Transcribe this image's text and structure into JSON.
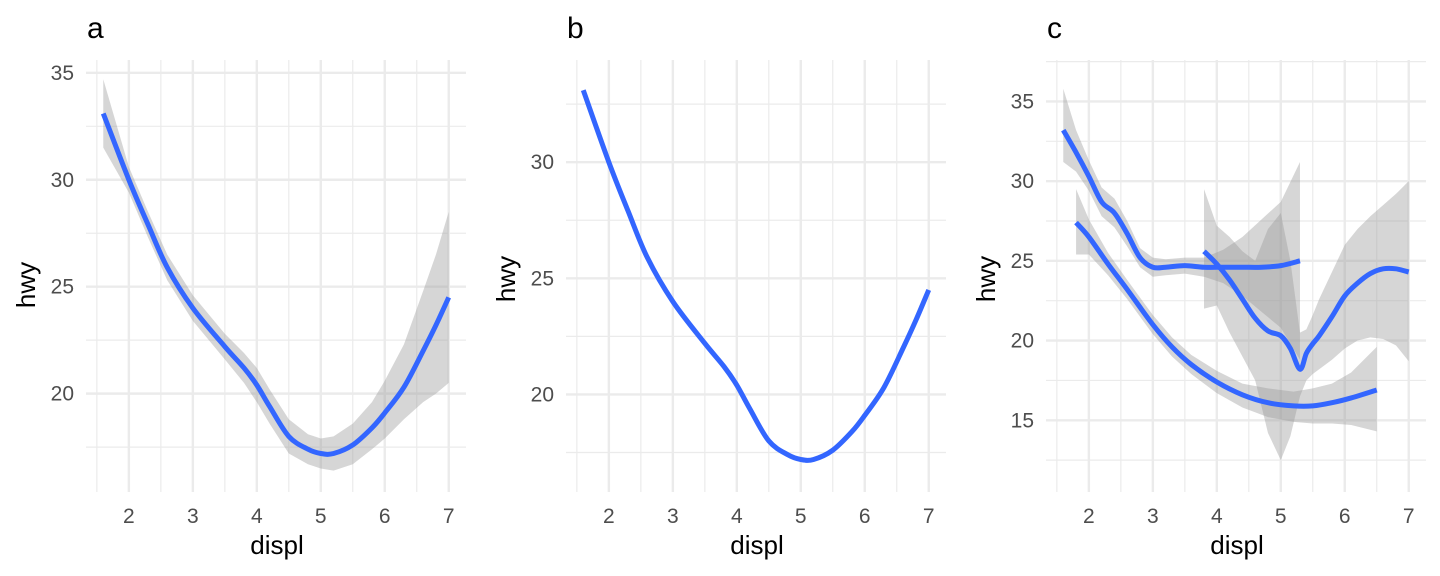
{
  "chart_data": [
    {
      "type": "line",
      "title": "a",
      "xlabel": "displ",
      "ylabel": "hwy",
      "xlim": [
        1.33,
        7.27
      ],
      "ylim": [
        15.4,
        35.6
      ],
      "xticks": [
        2,
        3,
        4,
        5,
        6,
        7
      ],
      "yticks": [
        20,
        25,
        30,
        35
      ],
      "grid": true,
      "series": [
        {
          "color": "#3366FF",
          "band": true,
          "x": [
            1.6,
            2.0,
            2.3,
            2.6,
            3.0,
            3.5,
            3.8,
            4.0,
            4.2,
            4.5,
            4.8,
            5.0,
            5.2,
            5.5,
            5.8,
            6.0,
            6.3,
            6.6,
            6.8,
            7.0
          ],
          "y": [
            33.1,
            30.0,
            27.9,
            25.9,
            24.0,
            22.2,
            21.2,
            20.4,
            19.4,
            18.0,
            17.4,
            17.2,
            17.2,
            17.6,
            18.4,
            19.1,
            20.3,
            22.0,
            23.2,
            24.5
          ],
          "lower": [
            31.5,
            29.4,
            27.3,
            25.3,
            23.4,
            21.6,
            20.5,
            19.6,
            18.6,
            17.2,
            16.7,
            16.5,
            16.4,
            16.7,
            17.4,
            17.9,
            18.8,
            19.6,
            20.0,
            20.5
          ],
          "upper": [
            34.7,
            30.6,
            28.5,
            26.5,
            24.6,
            22.8,
            21.9,
            21.2,
            20.2,
            18.8,
            18.1,
            17.9,
            18.0,
            18.6,
            19.6,
            20.6,
            22.3,
            24.8,
            26.5,
            28.5
          ]
        }
      ]
    },
    {
      "type": "line",
      "title": "b",
      "xlabel": "displ",
      "ylabel": "hwy",
      "xlim": [
        1.33,
        7.27
      ],
      "ylim": [
        15.8,
        34.4
      ],
      "xticks": [
        2,
        3,
        4,
        5,
        6,
        7
      ],
      "yticks": [
        20,
        25,
        30
      ],
      "grid": true,
      "series": [
        {
          "color": "#3366FF",
          "band": false,
          "x": [
            1.6,
            2.0,
            2.3,
            2.6,
            3.0,
            3.5,
            3.8,
            4.0,
            4.2,
            4.5,
            4.8,
            5.0,
            5.2,
            5.5,
            5.8,
            6.0,
            6.3,
            6.6,
            6.8,
            7.0
          ],
          "y": [
            33.1,
            30.0,
            27.9,
            25.9,
            24.0,
            22.2,
            21.2,
            20.4,
            19.4,
            18.0,
            17.4,
            17.2,
            17.2,
            17.6,
            18.4,
            19.1,
            20.3,
            22.0,
            23.2,
            24.5
          ]
        }
      ]
    },
    {
      "type": "line",
      "title": "c",
      "xlabel": "displ",
      "ylabel": "hwy",
      "xlim": [
        1.33,
        7.27
      ],
      "ylim": [
        10.5,
        37.6
      ],
      "xticks": [
        2,
        3,
        4,
        5,
        6,
        7
      ],
      "yticks": [
        15,
        20,
        25,
        30,
        35
      ],
      "grid": true,
      "series": [
        {
          "color": "#3366FF",
          "band": true,
          "x": [
            1.6,
            1.8,
            2.0,
            2.2,
            2.4,
            2.6,
            2.8,
            3.0,
            3.2,
            3.5,
            3.8,
            4.1,
            4.4,
            4.7,
            5.0,
            5.3
          ],
          "y": [
            33.2,
            31.8,
            30.3,
            28.7,
            28.0,
            26.7,
            25.2,
            24.6,
            24.6,
            24.7,
            24.6,
            24.6,
            24.6,
            24.6,
            24.7,
            25.0
          ],
          "lower": [
            31.2,
            30.6,
            29.4,
            27.8,
            27.1,
            25.9,
            24.6,
            24.0,
            24.1,
            24.2,
            24.0,
            23.6,
            22.8,
            21.8,
            20.8,
            18.8
          ],
          "upper": [
            35.8,
            33.2,
            31.3,
            29.6,
            28.9,
            27.5,
            25.8,
            25.2,
            25.1,
            25.2,
            25.2,
            25.7,
            26.5,
            27.6,
            28.7,
            31.2
          ]
        },
        {
          "color": "#3366FF",
          "band": true,
          "x": [
            1.8,
            2.0,
            2.3,
            2.6,
            3.0,
            3.3,
            3.6,
            4.0,
            4.4,
            4.8,
            5.2,
            5.5,
            5.8,
            6.1,
            6.5
          ],
          "y": [
            27.4,
            26.5,
            24.8,
            23.2,
            21.0,
            19.6,
            18.5,
            17.4,
            16.6,
            16.1,
            15.9,
            15.9,
            16.1,
            16.4,
            16.9
          ],
          "lower": [
            25.4,
            25.4,
            24.1,
            22.6,
            20.4,
            19.0,
            17.9,
            16.7,
            15.8,
            15.2,
            14.9,
            14.8,
            14.8,
            14.7,
            14.3
          ],
          "upper": [
            29.5,
            27.6,
            25.5,
            23.8,
            21.6,
            20.2,
            19.1,
            18.1,
            17.3,
            17.0,
            16.8,
            17.0,
            17.3,
            18.0,
            19.6
          ]
        },
        {
          "color": "#3366FF",
          "band": true,
          "x": [
            3.8,
            4.0,
            4.2,
            4.4,
            4.6,
            4.8,
            5.0,
            5.15,
            5.3,
            5.4,
            5.5,
            5.6,
            5.8,
            6.0,
            6.2,
            6.4,
            6.6,
            6.8,
            7.0
          ],
          "y": [
            25.6,
            24.8,
            23.8,
            22.6,
            21.4,
            20.6,
            20.3,
            19.5,
            18.2,
            19.2,
            19.8,
            20.3,
            21.5,
            22.8,
            23.6,
            24.2,
            24.5,
            24.5,
            24.3
          ],
          "lower": [
            22.0,
            22.2,
            20.5,
            19.0,
            17.5,
            14.2,
            12.5,
            14.0,
            16.5,
            17.5,
            17.9,
            18.2,
            18.8,
            19.5,
            20.0,
            20.2,
            20.1,
            19.7,
            18.7
          ],
          "upper": [
            29.5,
            27.2,
            26.5,
            25.6,
            25.0,
            27.0,
            28.0,
            25.0,
            20.5,
            20.7,
            21.6,
            22.6,
            24.3,
            26.0,
            27.0,
            27.8,
            28.5,
            29.2,
            30.0
          ]
        }
      ]
    }
  ]
}
